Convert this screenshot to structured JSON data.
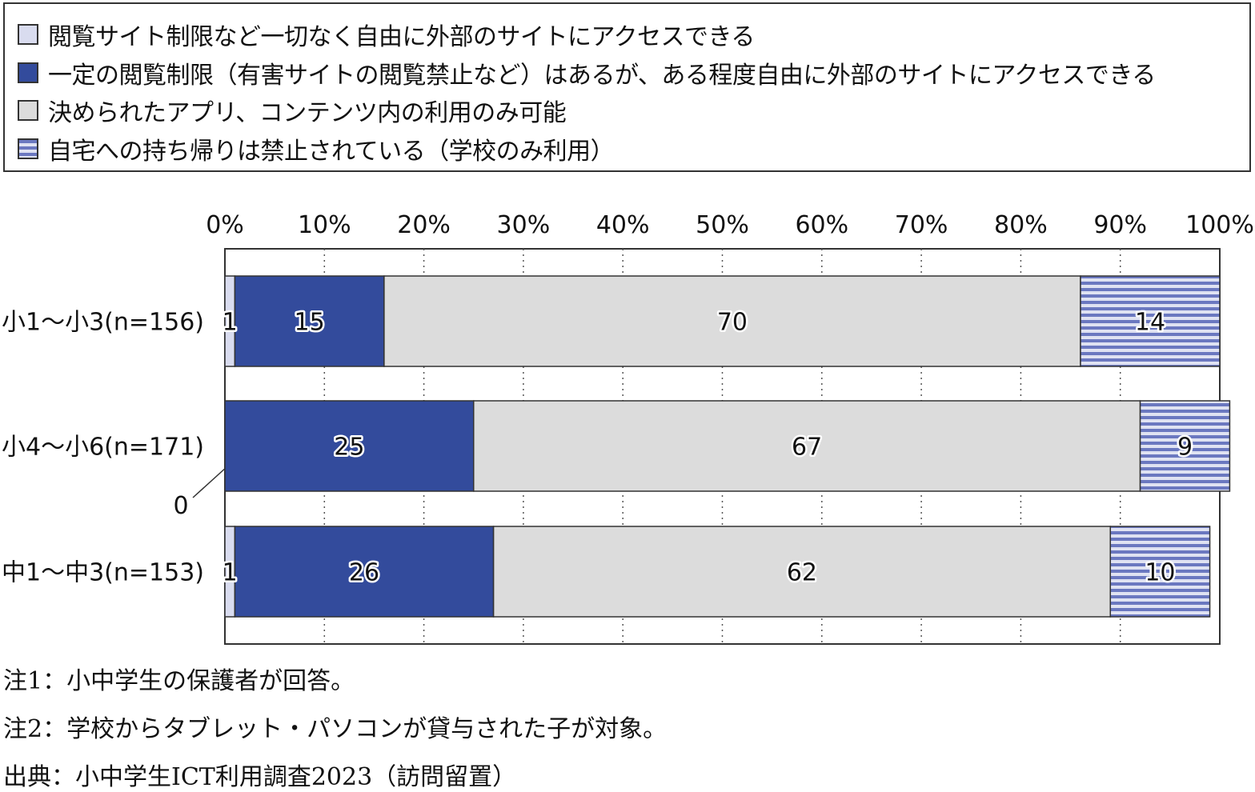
{
  "colors": {
    "free_access": "#d9dcef",
    "limited_access": "#334b9c",
    "apps_only": "#dcdcdc",
    "no_home": "#6b78c0",
    "no_home_stripe": "#dfe2f2",
    "border": "#333333",
    "grid": "#555555"
  },
  "chart_data": {
    "type": "bar",
    "orientation": "horizontal",
    "stacked": true,
    "percent": true,
    "categories": [
      "小1～小3(n=156)",
      "小4～小6(n=171)",
      "中1～中3(n=153)"
    ],
    "series": [
      {
        "name": "閲覧サイト制限など一切なく自由に外部のサイトにアクセスできる",
        "values": [
          1,
          0,
          1
        ],
        "labels": [
          "1",
          "0",
          "1"
        ],
        "color_key": "free_access"
      },
      {
        "name": "一定の閲覧制限（有害サイトの閲覧禁止など）はあるが、ある程度自由に外部のサイトにアクセスできる",
        "values": [
          15,
          25,
          26
        ],
        "labels": [
          "15",
          "25",
          "26"
        ],
        "color_key": "limited_access"
      },
      {
        "name": "決められたアプリ、コンテンツ内の利用のみ可能",
        "values": [
          70,
          67,
          62
        ],
        "labels": [
          "70",
          "67",
          "62"
        ],
        "color_key": "apps_only"
      },
      {
        "name": "自宅への持ち帰りは禁止されている（学校のみ利用）",
        "values": [
          14,
          9,
          10
        ],
        "labels": [
          "14",
          "9",
          "10"
        ],
        "color_key": "no_home",
        "pattern": "horizontal-stripes"
      }
    ],
    "xlim": [
      0,
      100
    ],
    "x_ticks": [
      "0%",
      "10%",
      "20%",
      "30%",
      "40%",
      "50%",
      "60%",
      "70%",
      "80%",
      "90%",
      "100%"
    ],
    "grid": "vertical dotted",
    "legend_position": "top"
  },
  "notes": [
    "注1：小中学生の保護者が回答。",
    "注2：学校からタブレット・パソコンが貸与された子が対象。",
    "出典：小中学生ICT利用調査2023（訪問留置）"
  ]
}
